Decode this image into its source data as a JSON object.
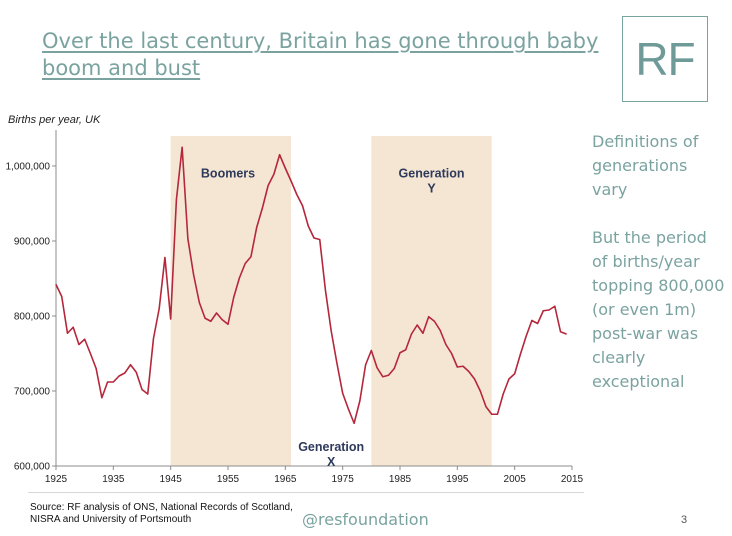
{
  "title": "Over the last century, Britain has gone through baby boom and bust",
  "logo_text": "RF",
  "side_text": [
    "Definitions of generations vary",
    "But the period of births/year topping 800,000 (or even 1m) post-war was clearly exceptional"
  ],
  "source": "Source: RF analysis of ONS, National Records of Scotland, NISRA  and University of Portsmouth",
  "handle": "@resfoundation",
  "page_number": "3",
  "colors": {
    "accent": "#7aa3a0",
    "line": "#b5273a",
    "band": "#f5e6d3",
    "gen_label": "#2e3a5c"
  },
  "chart_data": {
    "type": "line",
    "ylabel": "Births per year, UK",
    "xlabel": "",
    "xlim": [
      1925,
      2015
    ],
    "ylim": [
      600000,
      1040000
    ],
    "xticks": [
      1925,
      1935,
      1945,
      1955,
      1965,
      1975,
      1985,
      1995,
      2005,
      2015
    ],
    "yticks": [
      {
        "value": 600000,
        "label": "600,000"
      },
      {
        "value": 700000,
        "label": "700,000"
      },
      {
        "value": 800000,
        "label": "800,000"
      },
      {
        "value": 900000,
        "label": "900,000"
      },
      {
        "value": 1000000,
        "label": "1,000,000"
      }
    ],
    "bands": [
      {
        "name": "Boomers",
        "from": 1945,
        "to": 1966
      },
      {
        "name": "Generation Y",
        "from": 1980,
        "to": 2001
      }
    ],
    "annotations": [
      {
        "text": "Boomers",
        "x": 1955,
        "y": 985000
      },
      {
        "text": "Generation Y",
        "x": 1990.5,
        "y": 985000
      },
      {
        "text": "Generation X",
        "x": 1973,
        "y": 620000
      }
    ],
    "series": [
      {
        "x": [
          1925,
          1926,
          1927,
          1928,
          1929,
          1930,
          1931,
          1932,
          1933,
          1934,
          1935,
          1936,
          1937,
          1938,
          1939,
          1940,
          1941,
          1942,
          1943,
          1944,
          1945,
          1946,
          1947,
          1948,
          1949,
          1950,
          1951,
          1952,
          1953,
          1954,
          1955,
          1956,
          1957,
          1958,
          1959,
          1960,
          1961,
          1962,
          1963,
          1964,
          1965,
          1966,
          1967,
          1968,
          1969,
          1970,
          1971,
          1972,
          1973,
          1974,
          1975,
          1976,
          1977,
          1978,
          1979,
          1980,
          1981,
          1982,
          1983,
          1984,
          1985,
          1986,
          1987,
          1988,
          1989,
          1990,
          1991,
          1992,
          1993,
          1994,
          1995,
          1996,
          1997,
          1998,
          1999,
          2000,
          2001,
          2002,
          2003,
          2004,
          2005,
          2006,
          2007,
          2008,
          2009,
          2010,
          2011,
          2012,
          2013,
          2014
        ],
        "values": [
          842000,
          826000,
          777000,
          785000,
          762000,
          769000,
          750000,
          730000,
          691000,
          712000,
          712000,
          720000,
          724000,
          735000,
          725000,
          702000,
          696000,
          770000,
          810000,
          878000,
          796000,
          955000,
          1025000,
          903000,
          855000,
          818000,
          797000,
          793000,
          804000,
          795000,
          789000,
          825000,
          851000,
          870000,
          879000,
          918000,
          944000,
          974000,
          989000,
          1015000,
          997000,
          980000,
          962000,
          947000,
          920000,
          904000,
          902000,
          834000,
          780000,
          737000,
          697000,
          676000,
          657000,
          687000,
          735000,
          754000,
          731000,
          719000,
          721000,
          730000,
          751000,
          755000,
          776000,
          788000,
          777000,
          799000,
          793000,
          781000,
          762000,
          750000,
          732000,
          733000,
          726000,
          716000,
          700000,
          679000,
          669000,
          669000,
          696000,
          716000,
          723000,
          749000,
          773000,
          794000,
          790000,
          807000,
          808000,
          813000,
          779000,
          776000
        ]
      }
    ]
  }
}
